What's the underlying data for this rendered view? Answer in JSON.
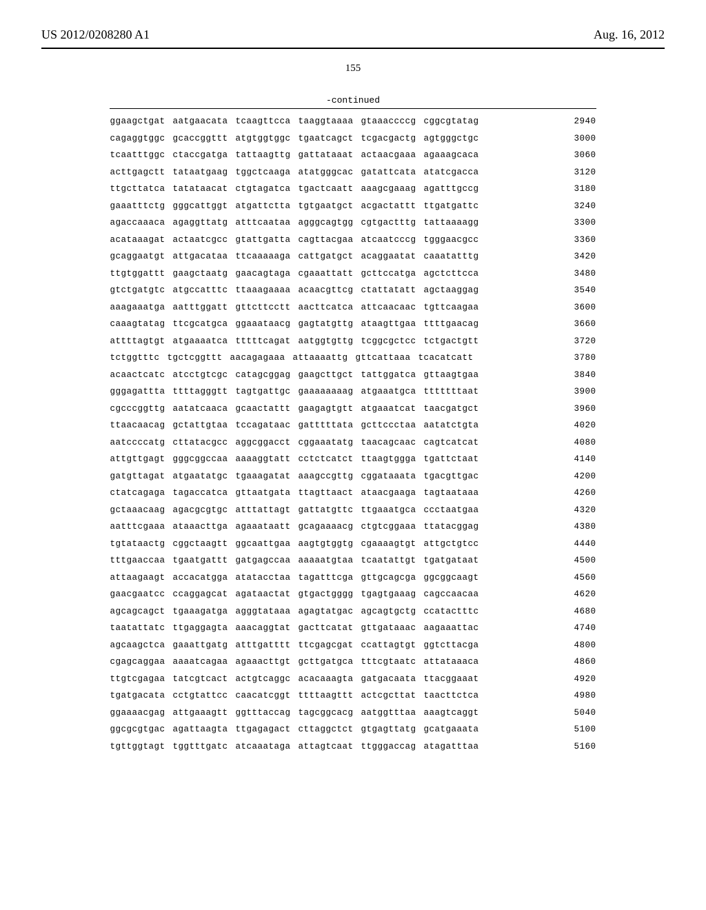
{
  "header": {
    "pub_number": "US 2012/0208280 A1",
    "pub_date": "Aug. 16, 2012"
  },
  "page_number": "155",
  "continued_label": "-continued",
  "sequence": {
    "rows": [
      {
        "groups": [
          "ggaagctgat",
          "aatgaacata",
          "tcaagttcca",
          "taaggtaaaa",
          "gtaaaccccg",
          "cggcgtatag"
        ],
        "pos": "2940"
      },
      {
        "groups": [
          "cagaggtggc",
          "gcaccggttt",
          "atgtggtggc",
          "tgaatcagct",
          "tcgacgactg",
          "agtgggctgc"
        ],
        "pos": "3000"
      },
      {
        "groups": [
          "tcaatttggc",
          "ctaccgatga",
          "tattaagttg",
          "gattataaat",
          "actaacgaaa",
          "agaaagcaca"
        ],
        "pos": "3060"
      },
      {
        "groups": [
          "acttgagctt",
          "tataatgaag",
          "tggctcaaga",
          "atatgggcac",
          "gatattcata",
          "atatcgacca"
        ],
        "pos": "3120"
      },
      {
        "groups": [
          "ttgcttatca",
          "tatataacat",
          "ctgtagatca",
          "tgactcaatt",
          "aaagcgaaag",
          "agatttgccg"
        ],
        "pos": "3180"
      },
      {
        "groups": [
          "gaaatttctg",
          "gggcattggt",
          "atgattctta",
          "tgtgaatgct",
          "acgactattt",
          "ttgatgattc"
        ],
        "pos": "3240"
      },
      {
        "groups": [
          "agaccaaaca",
          "agaggttatg",
          "atttcaataa",
          "agggcagtgg",
          "cgtgactttg",
          "tattaaaagg"
        ],
        "pos": "3300"
      },
      {
        "groups": [
          "acataaagat",
          "actaatcgcc",
          "gtattgatta",
          "cagttacgaa",
          "atcaatcccg",
          "tgggaacgcc"
        ],
        "pos": "3360"
      },
      {
        "groups": [
          "gcaggaatgt",
          "attgacataa",
          "ttcaaaaaga",
          "cattgatgct",
          "acaggaatat",
          "caaatatttg"
        ],
        "pos": "3420"
      },
      {
        "groups": [
          "ttgtggattt",
          "gaagctaatg",
          "gaacagtaga",
          "cgaaattatt",
          "gcttccatga",
          "agctcttcca"
        ],
        "pos": "3480"
      },
      {
        "groups": [
          "gtctgatgtc",
          "atgccatttc",
          "ttaaagaaaa",
          "acaacgttcg",
          "ctattatatt",
          "agctaaggag"
        ],
        "pos": "3540"
      },
      {
        "groups": [
          "aaagaaatga",
          "aatttggatt",
          "gttcttcctt",
          "aacttcatca",
          "attcaacaac",
          "tgttcaagaa"
        ],
        "pos": "3600"
      },
      {
        "groups": [
          "caaagtatag",
          "ttcgcatgca",
          "ggaaataacg",
          "gagtatgttg",
          "ataagttgaa",
          "ttttgaacag"
        ],
        "pos": "3660"
      },
      {
        "groups": [
          "attttagtgt",
          "atgaaaatca",
          "tttttcagat",
          "aatggtgttg",
          "tcggcgctcc",
          "tctgactgtt"
        ],
        "pos": "3720"
      },
      {
        "groups": [
          "tctggtttc",
          "tgctcggttt",
          "aacagagaaa",
          "attaaaattg",
          "gttcattaaa",
          "tcacatcatt"
        ],
        "pos": "3780"
      },
      {
        "groups": [
          "acaactcatc",
          "atcctgtcgc",
          "catagcggag",
          "gaagcttgct",
          "tattggatca",
          "gttaagtgaa"
        ],
        "pos": "3840"
      },
      {
        "groups": [
          "gggagattta",
          "ttttagggtt",
          "tagtgattgc",
          "gaaaaaaaag",
          "atgaaatgca",
          "tttttttaat"
        ],
        "pos": "3900"
      },
      {
        "groups": [
          "cgcccggttg",
          "aatatcaaca",
          "gcaactattt",
          "gaagagtgtt",
          "atgaaatcat",
          "taacgatgct"
        ],
        "pos": "3960"
      },
      {
        "groups": [
          "ttaacaacag",
          "gctattgtaa",
          "tccagataac",
          "gatttttata",
          "gcttccctaa",
          "aatatctgta"
        ],
        "pos": "4020"
      },
      {
        "groups": [
          "aatccccatg",
          "cttatacgcc",
          "aggcggacct",
          "cggaaatatg",
          "taacagcaac",
          "cagtcatcat"
        ],
        "pos": "4080"
      },
      {
        "groups": [
          "attgttgagt",
          "gggcggccaa",
          "aaaaggtatt",
          "cctctcatct",
          "ttaagtggga",
          "tgattctaat"
        ],
        "pos": "4140"
      },
      {
        "groups": [
          "gatgttagat",
          "atgaatatgc",
          "tgaaagatat",
          "aaagccgttg",
          "cggataaata",
          "tgacgttgac"
        ],
        "pos": "4200"
      },
      {
        "groups": [
          "ctatcagaga",
          "tagaccatca",
          "gttaatgata",
          "ttagttaact",
          "ataacgaaga",
          "tagtaataaa"
        ],
        "pos": "4260"
      },
      {
        "groups": [
          "gctaaacaag",
          "agacgcgtgc",
          "atttattagt",
          "gattatgttc",
          "ttgaaatgca",
          "ccctaatgaa"
        ],
        "pos": "4320"
      },
      {
        "groups": [
          "aatttcgaaa",
          "ataaacttga",
          "agaaataatt",
          "gcagaaaacg",
          "ctgtcggaaa",
          "ttatacggag"
        ],
        "pos": "4380"
      },
      {
        "groups": [
          "tgtataactg",
          "cggctaagtt",
          "ggcaattgaa",
          "aagtgtggtg",
          "cgaaaagtgt",
          "attgctgtcc"
        ],
        "pos": "4440"
      },
      {
        "groups": [
          "tttgaaccaa",
          "tgaatgattt",
          "gatgagccaa",
          "aaaaatgtaa",
          "tcaatattgt",
          "tgatgataat"
        ],
        "pos": "4500"
      },
      {
        "groups": [
          "attaagaagt",
          "accacatgga",
          "atatacctaa",
          "tagatttcga",
          "gttgcagcga",
          "ggcggcaagt"
        ],
        "pos": "4560"
      },
      {
        "groups": [
          "gaacgaatcc",
          "ccaggagcat",
          "agataactat",
          "gtgactgggg",
          "tgagtgaaag",
          "cagccaacaa"
        ],
        "pos": "4620"
      },
      {
        "groups": [
          "agcagcagct",
          "tgaaagatga",
          "agggtataaa",
          "agagtatgac",
          "agcagtgctg",
          "ccatactttc"
        ],
        "pos": "4680"
      },
      {
        "groups": [
          "taatattatc",
          "ttgaggagta",
          "aaacaggtat",
          "gacttcatat",
          "gttgataaac",
          "aagaaattac"
        ],
        "pos": "4740"
      },
      {
        "groups": [
          "agcaagctca",
          "gaaattgatg",
          "atttgatttt",
          "ttcgagcgat",
          "ccattagtgt",
          "ggtcttacga"
        ],
        "pos": "4800"
      },
      {
        "groups": [
          "cgagcaggaa",
          "aaaatcagaa",
          "agaaacttgt",
          "gcttgatgca",
          "tttcgtaatc",
          "attataaaca"
        ],
        "pos": "4860"
      },
      {
        "groups": [
          "ttgtcgagaa",
          "tatcgtcact",
          "actgtcaggc",
          "acacaaagta",
          "gatgacaata",
          "ttacggaaat"
        ],
        "pos": "4920"
      },
      {
        "groups": [
          "tgatgacata",
          "cctgtattcc",
          "caacatcggt",
          "ttttaagttt",
          "actcgcttat",
          "taacttctca"
        ],
        "pos": "4980"
      },
      {
        "groups": [
          "ggaaaacgag",
          "attgaaagtt",
          "ggtttaccag",
          "tagcggcacg",
          "aatggtttaa",
          "aaagtcaggt"
        ],
        "pos": "5040"
      },
      {
        "groups": [
          "ggcgcgtgac",
          "agattaagta",
          "ttgagagact",
          "cttaggctct",
          "gtgagttatg",
          "gcatgaaata"
        ],
        "pos": "5100"
      },
      {
        "groups": [
          "tgttggtagt",
          "tggtttgatc",
          "atcaaataga",
          "attagtcaat",
          "ttgggaccag",
          "atagatttaa"
        ],
        "pos": "5160"
      }
    ]
  }
}
